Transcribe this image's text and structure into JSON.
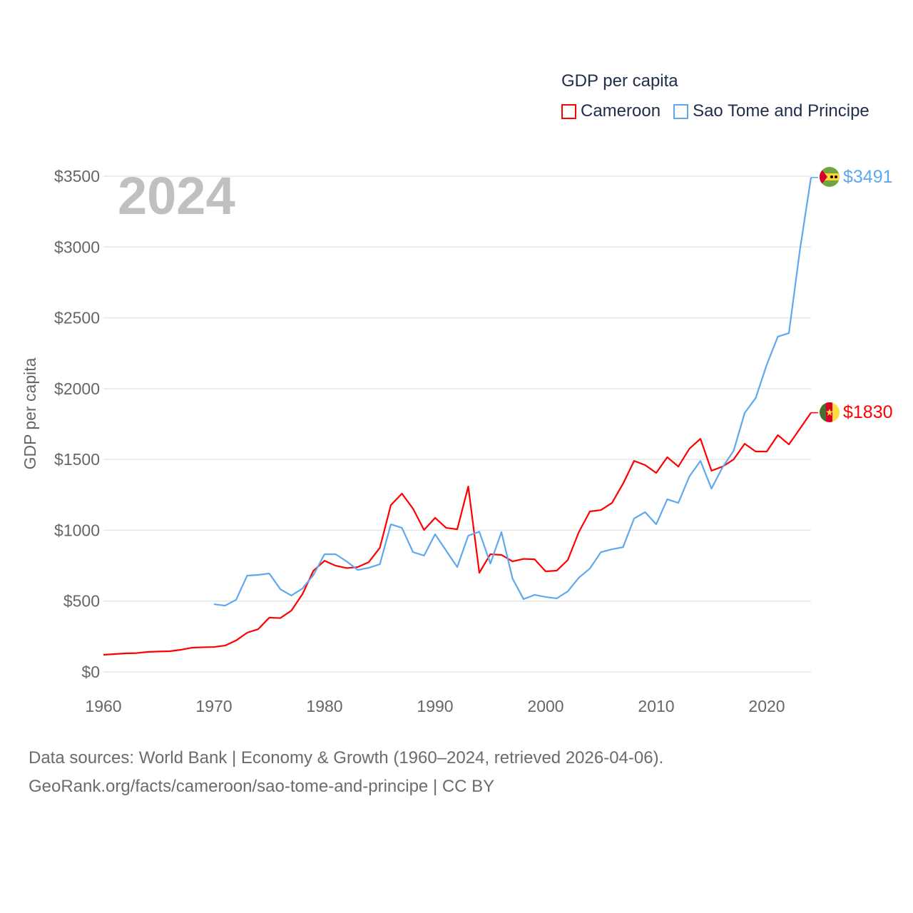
{
  "chart_data": {
    "type": "line",
    "title": "GDP per capita",
    "year_label": "2024",
    "xlabel": "",
    "ylabel": "GDP per capita",
    "xlim": [
      1960,
      2024
    ],
    "ylim": [
      0,
      3500
    ],
    "x_ticks": [
      "1960",
      "1970",
      "1980",
      "1990",
      "2000",
      "2010",
      "2020"
    ],
    "y_ticks": [
      "$0",
      "$500",
      "$1000",
      "$1500",
      "$2000",
      "$2500",
      "$3000",
      "$3500"
    ],
    "y_tick_values": [
      0,
      500,
      1000,
      1500,
      2000,
      2500,
      3000,
      3500
    ],
    "x_tick_values": [
      1960,
      1970,
      1980,
      1990,
      2000,
      2010,
      2020
    ],
    "grid": true,
    "legend_placement": "top-right",
    "series": [
      {
        "name": "Cameroon",
        "color": "#ff0000",
        "end_label": "$1830",
        "start_year": 1960,
        "values": [
          121,
          126,
          131,
          133,
          141,
          144,
          146,
          156,
          171,
          174,
          176,
          186,
          222,
          277,
          302,
          383,
          380,
          433,
          549,
          715,
          785,
          750,
          733,
          740,
          775,
          876,
          1178,
          1259,
          1153,
          1002,
          1088,
          1017,
          1007,
          1309,
          700,
          831,
          826,
          780,
          798,
          795,
          710,
          715,
          790,
          987,
          1133,
          1143,
          1193,
          1329,
          1490,
          1460,
          1405,
          1516,
          1450,
          1576,
          1646,
          1420,
          1450,
          1500,
          1611,
          1556,
          1556,
          1672,
          1606,
          1717,
          1830
        ]
      },
      {
        "name": "Sao Tome and Principe",
        "color": "#5fa8ee",
        "end_label": "$3491",
        "start_year": 1970,
        "values": [
          478,
          468,
          509,
          680,
          685,
          695,
          584,
          539,
          589,
          685,
          831,
          831,
          780,
          720,
          735,
          760,
          1042,
          1017,
          846,
          821,
          972,
          856,
          740,
          962,
          990,
          765,
          987,
          660,
          514,
          544,
          529,
          519,
          569,
          665,
          730,
          846,
          866,
          881,
          1083,
          1128,
          1042,
          1219,
          1193,
          1380,
          1490,
          1294,
          1445,
          1561,
          1828,
          1934,
          2170,
          2367,
          2392,
          2981,
          3491
        ]
      }
    ]
  },
  "footer": {
    "line1": "Data sources: World Bank | Economy & Growth (1960–2024, retrieved 2026-04-06).",
    "line2": "GeoRank.org/facts/cameroon/sao-tome-and-principe | CC BY"
  }
}
